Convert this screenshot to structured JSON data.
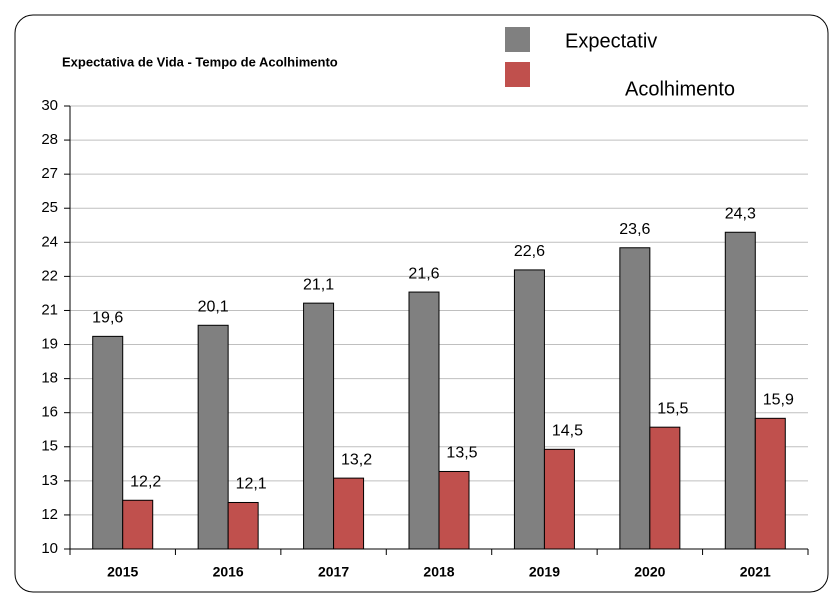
{
  "chart_data": {
    "type": "bar",
    "title": "Expectativa de Vida - Tempo de Acolhimento",
    "categories": [
      "2015",
      "2016",
      "2017",
      "2018",
      "2019",
      "2020",
      "2021"
    ],
    "series": [
      {
        "name": "Expectativ",
        "color": "#808080",
        "values": [
          19.6,
          20.1,
          21.1,
          21.6,
          22.6,
          23.6,
          24.3
        ],
        "value_labels": [
          "19,6",
          "20,1",
          "21,1",
          "21,6",
          "22,6",
          "23,6",
          "24,3"
        ]
      },
      {
        "name": "Acolhimento",
        "color": "#c0504d",
        "values": [
          12.2,
          12.1,
          13.2,
          13.5,
          14.5,
          15.5,
          15.9
        ],
        "value_labels": [
          "12,2",
          "12,1",
          "13,2",
          "13,5",
          "14,5",
          "15,5",
          "15,9"
        ]
      }
    ],
    "ylim": [
      10,
      30
    ],
    "yticks": [
      10,
      {
        "value": 11.538,
        "label": "12"
      },
      {
        "value": 13.077,
        "label": "13"
      },
      {
        "value": 14.615,
        "label": "15"
      },
      {
        "value": 16.154,
        "label": "16"
      },
      {
        "value": 17.692,
        "label": "18"
      },
      {
        "value": 19.231,
        "label": "19"
      },
      {
        "value": 20.769,
        "label": "21"
      },
      {
        "value": 22.308,
        "label": "22"
      },
      {
        "value": 23.846,
        "label": "24"
      },
      {
        "value": 25.385,
        "label": "25"
      },
      {
        "value": 26.923,
        "label": "27"
      },
      {
        "value": 28.462,
        "label": "28"
      },
      30
    ],
    "grid": true
  }
}
